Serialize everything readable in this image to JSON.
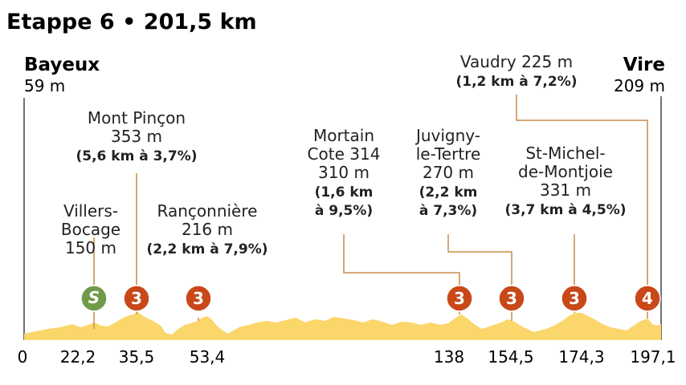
{
  "title": "Etappe 6 • 201,5 km",
  "colors": {
    "profile_fill": "#fbd66b",
    "leader": "#c98b4c",
    "cat_badge": "#c9481a",
    "sprint_badge": "#6f9b4a",
    "text": "#222222"
  },
  "start": {
    "name": "Bayeux",
    "elevation": "59 m"
  },
  "finish": {
    "name": "Vire",
    "elevation": "209 m"
  },
  "axis_ticks": [
    "0",
    "22,2",
    "35,5",
    "53,4",
    "138",
    "154,5",
    "174,3",
    "197,1"
  ],
  "axis_values": [
    0,
    22.2,
    35.5,
    53.4,
    138,
    154.5,
    174.3,
    197.1
  ],
  "waypoints": [
    {
      "badge": "S",
      "type": "sprint",
      "km": 22.2,
      "lines": [
        "Villers-",
        "Bocage",
        "150 m"
      ],
      "bold": []
    },
    {
      "badge": "3",
      "type": "climb",
      "km": 35.5,
      "lines": [
        "Mont Pinçon",
        "353 m"
      ],
      "bold": [
        "(5,6 km à 3,7%)"
      ]
    },
    {
      "badge": "3",
      "type": "climb",
      "km": 53.4,
      "lines": [
        "Rançonnière",
        "216 m"
      ],
      "bold": [
        "(2,2 km à 7,9%)"
      ]
    },
    {
      "badge": "3",
      "type": "climb",
      "km": 138,
      "lines": [
        "Mortain",
        "Cote 314",
        "310 m"
      ],
      "bold": [
        "(1,6 km",
        "à 9,5%)"
      ]
    },
    {
      "badge": "3",
      "type": "climb",
      "km": 154.5,
      "lines": [
        "Juvigny-",
        "le-Tertre",
        "270 m"
      ],
      "bold": [
        "(2,2 km",
        "à 7,3%)"
      ]
    },
    {
      "badge": "3",
      "type": "climb",
      "km": 174.3,
      "lines": [
        "St-Michel-",
        "de-Montjoie",
        "331 m"
      ],
      "bold": [
        "(3,7 km à 4,5%)"
      ]
    },
    {
      "badge": "4",
      "type": "climb",
      "km": 197.1,
      "lines": [
        "Vaudry 225 m"
      ],
      "bold": [
        "(1,2 km à 7,2%)"
      ]
    }
  ]
}
